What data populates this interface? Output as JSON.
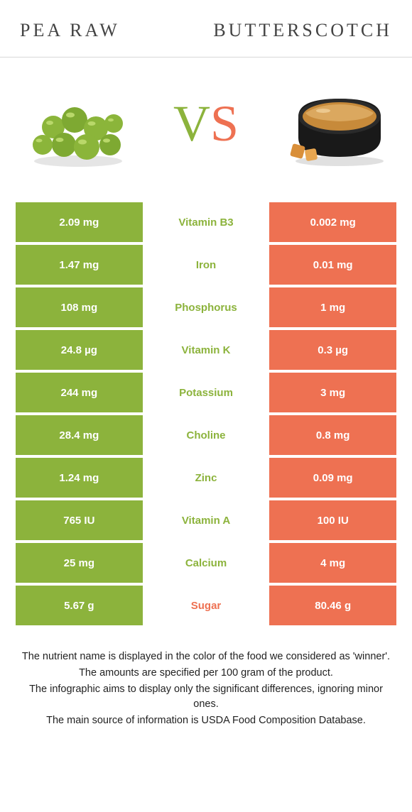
{
  "header": {
    "left": "PEA RAW",
    "right": "BUTTERSCOTCH"
  },
  "colors": {
    "left_bg": "#8cb33c",
    "left_text": "#ffffff",
    "right_bg": "#ee7152",
    "right_text": "#ffffff",
    "mid_bg": "#ffffff",
    "winner_left": "#8cb33c",
    "winner_right": "#ee7152",
    "vs_v": "#8cb33c",
    "vs_s": "#ee7152",
    "border": "#d8d8d8"
  },
  "vs": {
    "v": "V",
    "s": "S"
  },
  "rows": [
    {
      "left": "2.09 mg",
      "mid": "Vitamin B3",
      "right": "0.002 mg",
      "winner": "left"
    },
    {
      "left": "1.47 mg",
      "mid": "Iron",
      "right": "0.01 mg",
      "winner": "left"
    },
    {
      "left": "108 mg",
      "mid": "Phosphorus",
      "right": "1 mg",
      "winner": "left"
    },
    {
      "left": "24.8 µg",
      "mid": "Vitamin K",
      "right": "0.3 µg",
      "winner": "left"
    },
    {
      "left": "244 mg",
      "mid": "Potassium",
      "right": "3 mg",
      "winner": "left"
    },
    {
      "left": "28.4 mg",
      "mid": "Choline",
      "right": "0.8 mg",
      "winner": "left"
    },
    {
      "left": "1.24 mg",
      "mid": "Zinc",
      "right": "0.09 mg",
      "winner": "left"
    },
    {
      "left": "765 IU",
      "mid": "Vitamin A",
      "right": "100 IU",
      "winner": "left"
    },
    {
      "left": "25 mg",
      "mid": "Calcium",
      "right": "4 mg",
      "winner": "left"
    },
    {
      "left": "5.67 g",
      "mid": "Sugar",
      "right": "80.46 g",
      "winner": "right"
    }
  ],
  "notes": [
    "The nutrient name is displayed in the color of the food we considered as 'winner'.",
    "The amounts are specified per 100 gram of the product.",
    "The infographic aims to display only the significant differences, ignoring minor ones.",
    "The main source of information is USDA Food Composition Database."
  ]
}
